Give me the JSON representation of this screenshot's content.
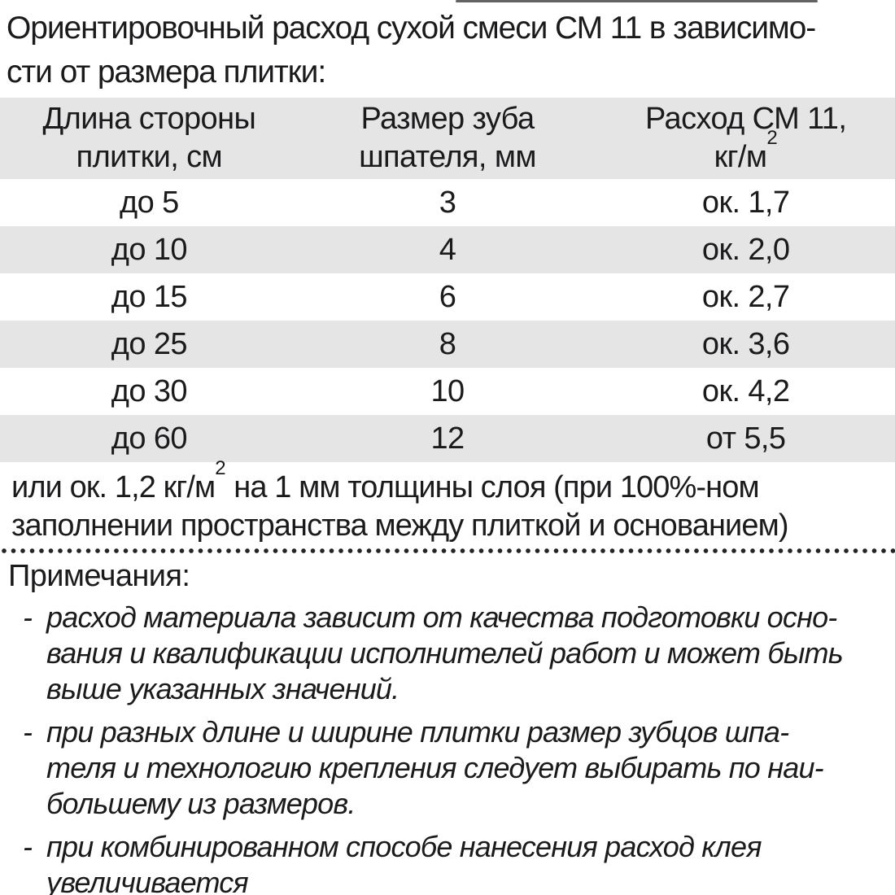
{
  "page": {
    "title_line1": "Ориентировочный расход сухой смеси СМ 11 в зависимо-",
    "title_line2": "сти от размера плитки:"
  },
  "table": {
    "col1_header_line1": "Длина стороны",
    "col1_header_line2": "плитки, см",
    "col2_header_line1": "Размер зуба",
    "col2_header_line2": "шпателя, мм",
    "col3_header_line1": "Расход СМ 11,",
    "col3_header_line2_base": "кг/м",
    "col3_header_line2_sup": "2",
    "rows": [
      [
        "до 5",
        "3",
        "ок. 1,7"
      ],
      [
        "до 10",
        "4",
        "ок. 2,0"
      ],
      [
        "до 15",
        "6",
        "ок. 2,7"
      ],
      [
        "до 25",
        "8",
        "ок. 3,6"
      ],
      [
        "до 30",
        "10",
        "ок. 4,2"
      ],
      [
        "до 60",
        "12",
        "от 5,5"
      ]
    ]
  },
  "footnote": {
    "line1_pre": "или ок. 1,2 кг/м",
    "line1_sup": "2",
    "line1_post": " на 1 мм толщины слоя (при 100%-ном",
    "line2": "заполнении пространства между плиткой и основанием)"
  },
  "notes": {
    "heading": "Примечания:",
    "items": [
      {
        "marker": "-",
        "lines": [
          "расход материала зависит от качества подготовки осно-",
          "вания и квалификации исполнителей работ и может быть",
          "выше указанных значений."
        ]
      },
      {
        "marker": "-",
        "lines": [
          "при разных длине и ширине плитки размер зубцов шпа-",
          "теля и технологию крепления следует выбирать по наи-",
          "большему из размеров."
        ]
      },
      {
        "marker": "-",
        "lines": [
          "при комбинированном способе нанесения расход клея",
          "увеличивается"
        ]
      }
    ]
  },
  "colors": {
    "row_shade": "#e5e5e6",
    "text": "#1b1b1d"
  }
}
